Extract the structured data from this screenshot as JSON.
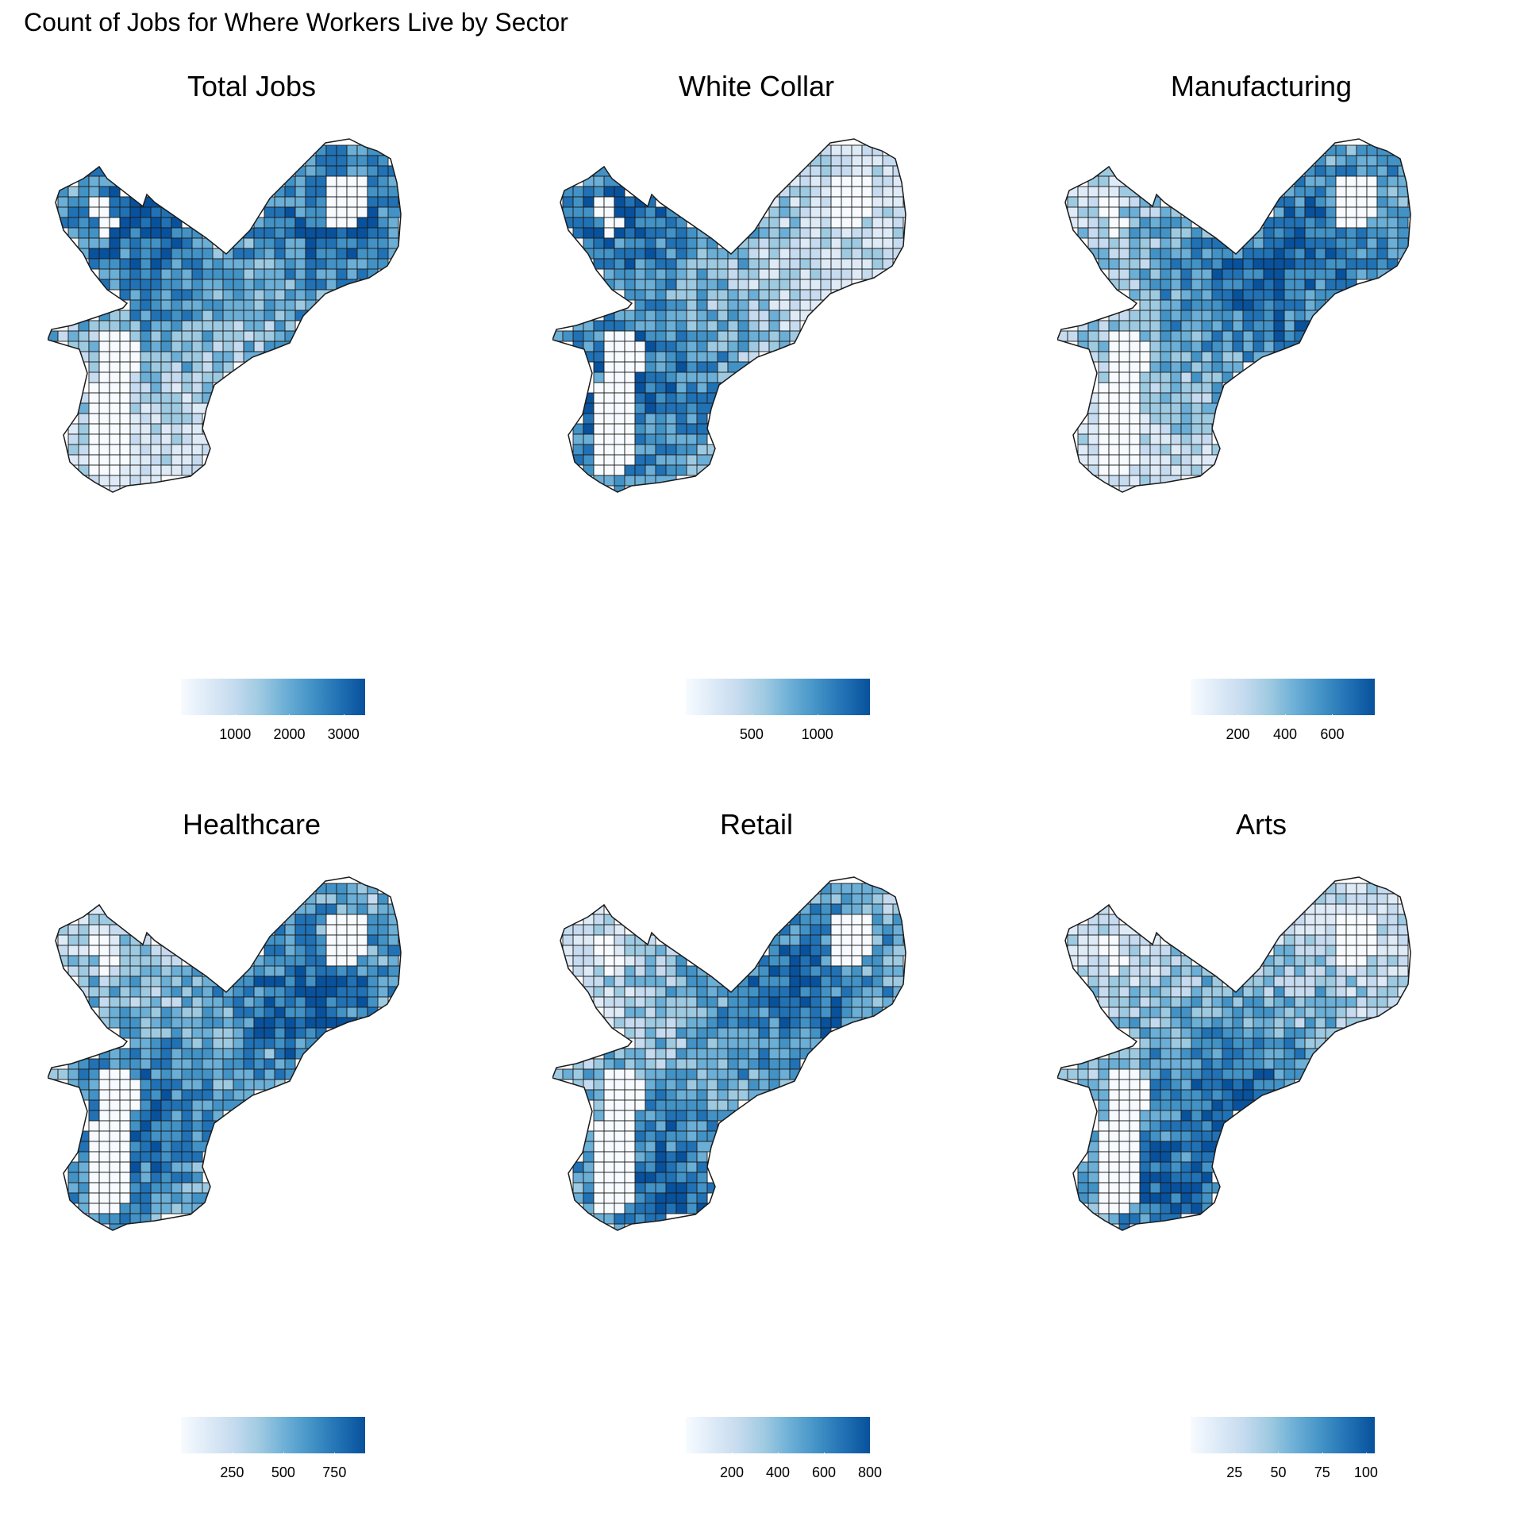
{
  "title": "Count of Jobs for Where Workers Live by Sector",
  "colors": {
    "scale": [
      "#f7fbff",
      "#deebf7",
      "#c6dbef",
      "#9ecae1",
      "#6baed6",
      "#4292c6",
      "#2171b5",
      "#08519c"
    ],
    "border": "#1a1a1a"
  },
  "panels": [
    {
      "title": "Total Jobs",
      "legend": {
        "min": 0,
        "max": 3400,
        "ticks": [
          1000,
          2000,
          3000
        ]
      }
    },
    {
      "title": "White Collar",
      "legend": {
        "min": 0,
        "max": 1400,
        "ticks": [
          500,
          1000
        ]
      }
    },
    {
      "title": "Manufacturing",
      "legend": {
        "min": 0,
        "max": 780,
        "ticks": [
          200,
          400,
          600
        ]
      }
    },
    {
      "title": "Healthcare",
      "legend": {
        "min": 0,
        "max": 900,
        "ticks": [
          250,
          500,
          750
        ]
      }
    },
    {
      "title": "Retail",
      "legend": {
        "min": 0,
        "max": 800,
        "ticks": [
          200,
          400,
          600,
          800
        ]
      }
    },
    {
      "title": "Arts",
      "legend": {
        "min": 0,
        "max": 105,
        "ticks": [
          25,
          50,
          75,
          100
        ]
      }
    }
  ]
}
